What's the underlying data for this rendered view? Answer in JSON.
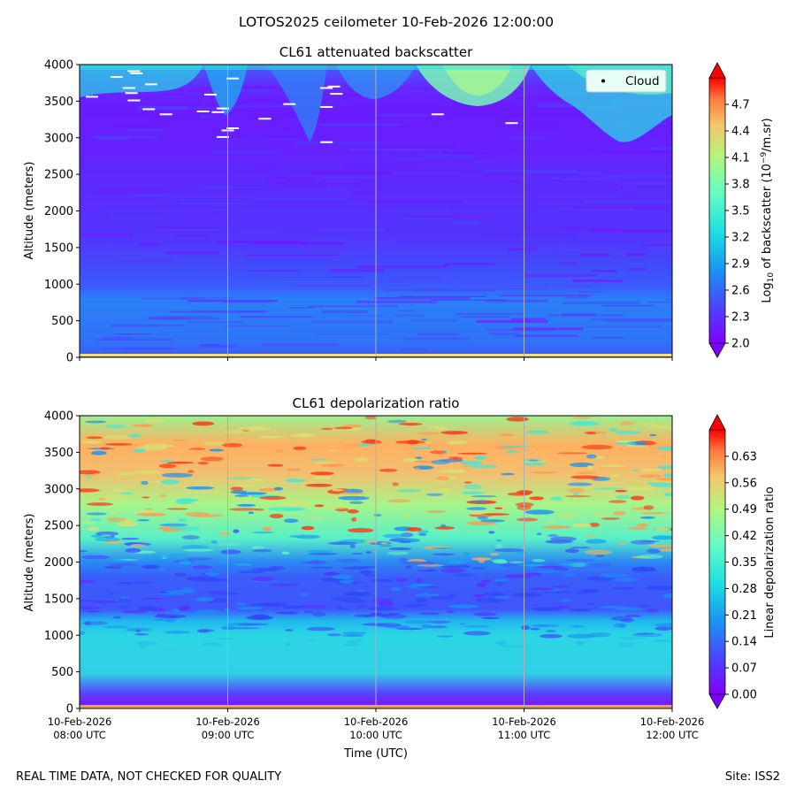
{
  "figure": {
    "suptitle": "LOTOS2025 ceilometer 10-Feb-2026 12:00:00",
    "footer_left": "REAL TIME DATA, NOT CHECKED FOR QUALITY",
    "footer_right": "Site: ISS2"
  },
  "chart_data": [
    {
      "type": "heatmap",
      "title": "CL61 attenuated backscatter",
      "ylabel": "Altitude (meters)",
      "xlabel": "",
      "ylim": [
        0,
        4000
      ],
      "yticks": [
        0,
        500,
        1000,
        1500,
        2000,
        2500,
        3000,
        3500,
        4000
      ],
      "xlim_utc": [
        "08:00",
        "12:00"
      ],
      "grid": "vertical",
      "colorbar": {
        "label_prefix": "Log",
        "label_sub": "10",
        "label_mid": " of backscatter (10",
        "label_sup": "−9",
        "label_suffix": "/m.sr)",
        "min": 2.0,
        "max": 5.0,
        "ticks": [
          "2.0",
          "2.3",
          "2.6",
          "2.9",
          "3.2",
          "3.5",
          "3.8",
          "4.1",
          "4.4",
          "4.7"
        ],
        "colormap": "rainbow"
      },
      "legend": {
        "label": "Cloud",
        "position": "top-right"
      },
      "cloud_points": [
        {
          "t": "08:05",
          "alt": 3560
        },
        {
          "t": "08:15",
          "alt": 3830
        },
        {
          "t": "08:22",
          "alt": 3910
        },
        {
          "t": "08:23",
          "alt": 3880
        },
        {
          "t": "08:20",
          "alt": 3680
        },
        {
          "t": "08:21",
          "alt": 3610
        },
        {
          "t": "08:22",
          "alt": 3510
        },
        {
          "t": "08:29",
          "alt": 3730
        },
        {
          "t": "08:28",
          "alt": 3390
        },
        {
          "t": "08:35",
          "alt": 3320
        },
        {
          "t": "08:50",
          "alt": 3360
        },
        {
          "t": "08:56",
          "alt": 3350
        },
        {
          "t": "08:53",
          "alt": 3590
        },
        {
          "t": "08:58",
          "alt": 3400
        },
        {
          "t": "08:58",
          "alt": 3010
        },
        {
          "t": "09:02",
          "alt": 3130
        },
        {
          "t": "09:02",
          "alt": 3810
        },
        {
          "t": "09:15",
          "alt": 3260
        },
        {
          "t": "09:00",
          "alt": 3100
        },
        {
          "t": "09:25",
          "alt": 3460
        },
        {
          "t": "09:40",
          "alt": 3680
        },
        {
          "t": "09:43",
          "alt": 3700
        },
        {
          "t": "09:44",
          "alt": 3600
        },
        {
          "t": "09:40",
          "alt": 3420
        },
        {
          "t": "09:40",
          "alt": 2940
        },
        {
          "t": "10:25",
          "alt": 3320
        },
        {
          "t": "10:55",
          "alt": 3200
        }
      ]
    },
    {
      "type": "heatmap",
      "title": "CL61 depolarization ratio",
      "ylabel": "Altitude (meters)",
      "xlabel": "Time (UTC)",
      "ylim": [
        0,
        4000
      ],
      "yticks": [
        0,
        500,
        1000,
        1500,
        2000,
        2500,
        3000,
        3500,
        4000
      ],
      "xlim_utc": [
        "08:00",
        "12:00"
      ],
      "xticks": [
        {
          "t": "08:00",
          "line1": "10-Feb-2026",
          "line2": "08:00 UTC"
        },
        {
          "t": "09:00",
          "line1": "10-Feb-2026",
          "line2": "09:00 UTC"
        },
        {
          "t": "10:00",
          "line1": "10-Feb-2026",
          "line2": "10:00 UTC"
        },
        {
          "t": "11:00",
          "line1": "10-Feb-2026",
          "line2": "11:00 UTC"
        },
        {
          "t": "12:00",
          "line1": "10-Feb-2026",
          "line2": "12:00 UTC"
        }
      ],
      "grid": "vertical",
      "colorbar": {
        "label": "Linear depolarization ratio",
        "min": 0.0,
        "max": 0.7,
        "ticks": [
          "0.00",
          "0.07",
          "0.14",
          "0.21",
          "0.28",
          "0.35",
          "0.42",
          "0.49",
          "0.56",
          "0.63"
        ],
        "colormap": "rainbow"
      }
    }
  ],
  "colors": {
    "grid": "#b0b0b0",
    "cloud_marker": "#ffffff",
    "legend_bg": "#e8fff6",
    "ground_line": "#f0e080"
  }
}
